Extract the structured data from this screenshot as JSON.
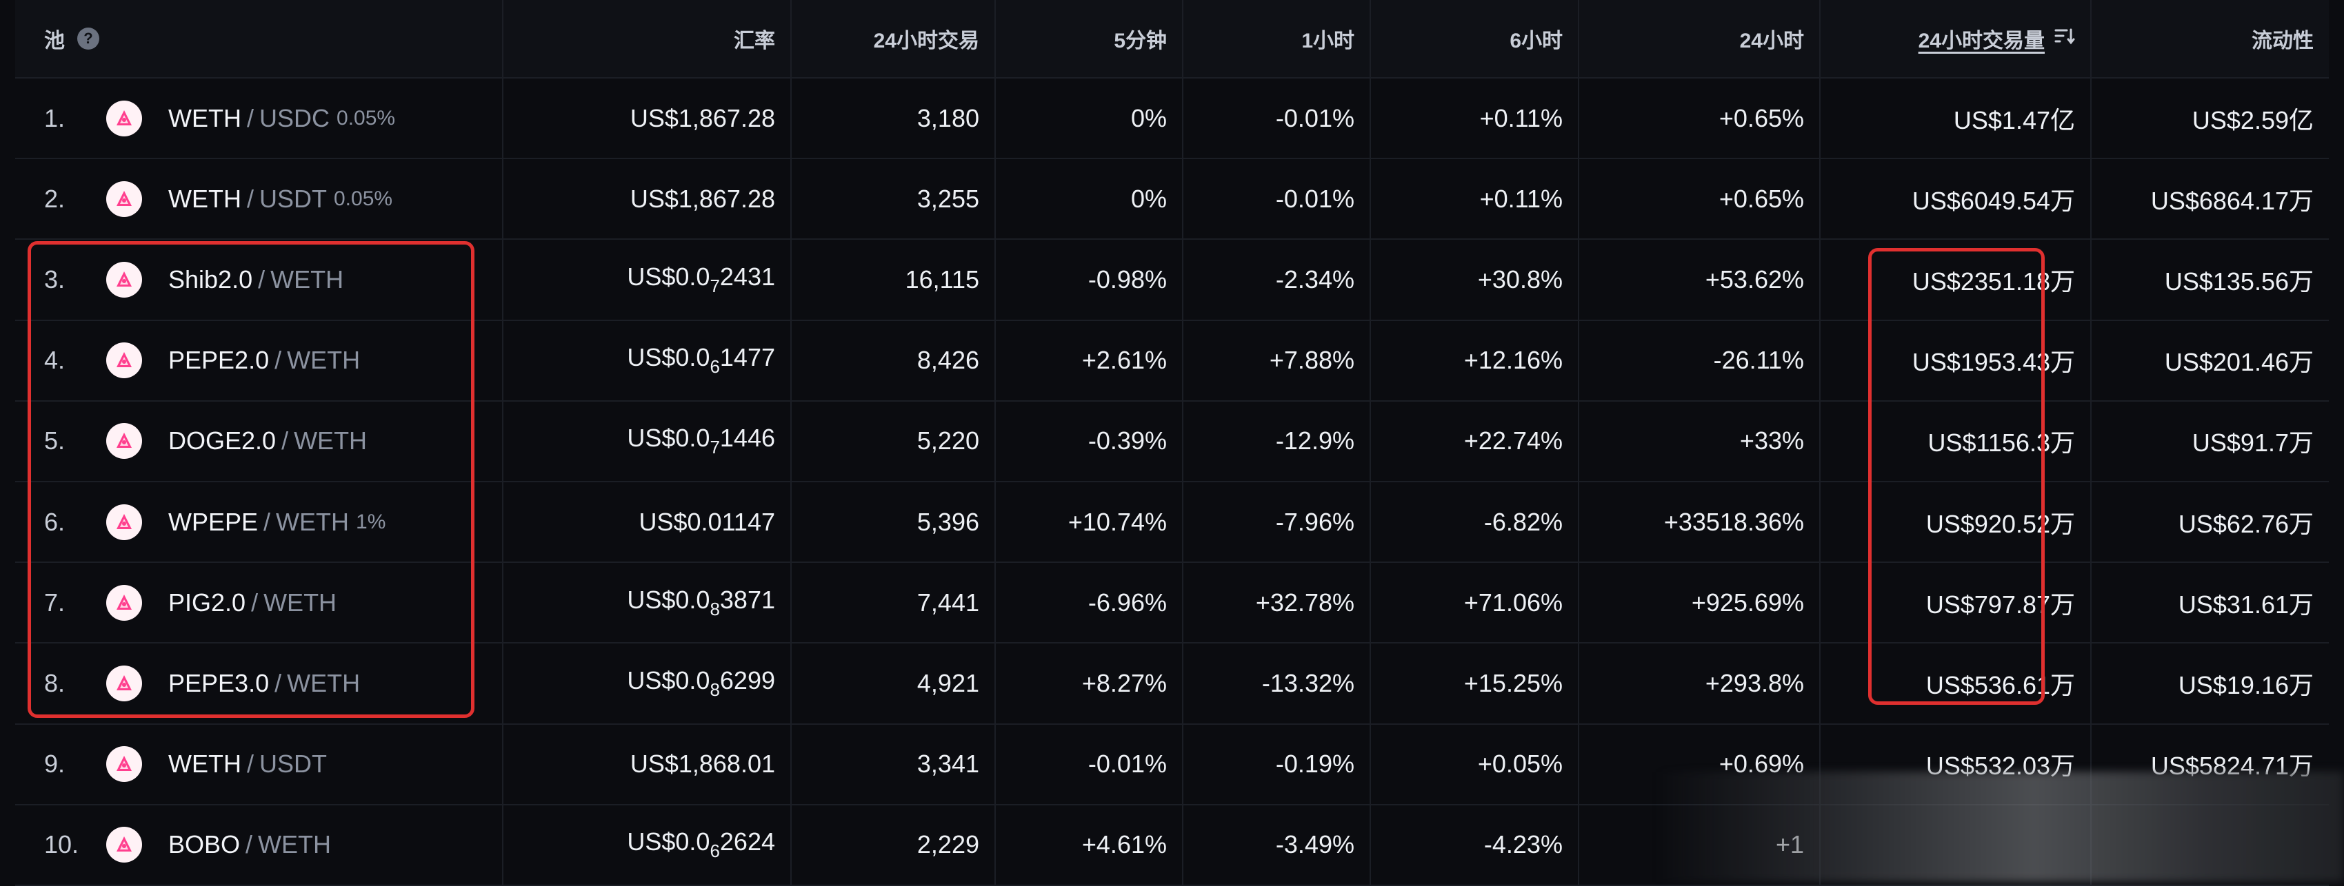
{
  "header": {
    "pool": "池",
    "help_glyph": "?",
    "rate": "汇率",
    "tx24h": "24小时交易",
    "m5": "5分钟",
    "h1": "1小时",
    "h6": "6小时",
    "h24": "24小时",
    "vol24h": "24小时交易量",
    "liquidity": "流动性"
  },
  "rows": [
    {
      "idx": "1.",
      "t0": "WETH",
      "t1": "USDC",
      "fee": "0.05%",
      "rate": "US$1,867.28",
      "tx": "3,180",
      "m5": "0%",
      "h1": "-0.01%",
      "h6": "+0.11%",
      "h24": "+0.65%",
      "vol": "US$1.47亿",
      "liq": "US$2.59亿"
    },
    {
      "idx": "2.",
      "t0": "WETH",
      "t1": "USDT",
      "fee": "0.05%",
      "rate": "US$1,867.28",
      "tx": "3,255",
      "m5": "0%",
      "h1": "-0.01%",
      "h6": "+0.11%",
      "h24": "+0.65%",
      "vol": "US$6049.54万",
      "liq": "US$6864.17万"
    },
    {
      "idx": "3.",
      "t0": "Shib2.0",
      "t1": "WETH",
      "fee": "",
      "rate_a": "US$0.0",
      "rate_sub": "7",
      "rate_b": "2431",
      "tx": "16,115",
      "m5": "-0.98%",
      "h1": "-2.34%",
      "h6": "+30.8%",
      "h24": "+53.62%",
      "vol": "US$2351.18万",
      "liq": "US$135.56万"
    },
    {
      "idx": "4.",
      "t0": "PEPE2.0",
      "t1": "WETH",
      "fee": "",
      "rate_a": "US$0.0",
      "rate_sub": "6",
      "rate_b": "1477",
      "tx": "8,426",
      "m5": "+2.61%",
      "h1": "+7.88%",
      "h6": "+12.16%",
      "h24": "-26.11%",
      "vol": "US$1953.43万",
      "liq": "US$201.46万"
    },
    {
      "idx": "5.",
      "t0": "DOGE2.0",
      "t1": "WETH",
      "fee": "",
      "rate_a": "US$0.0",
      "rate_sub": "7",
      "rate_b": "1446",
      "tx": "5,220",
      "m5": "-0.39%",
      "h1": "-12.9%",
      "h6": "+22.74%",
      "h24": "+33%",
      "vol": "US$1156.3万",
      "liq": "US$91.7万"
    },
    {
      "idx": "6.",
      "t0": "WPEPE",
      "t1": "WETH",
      "fee": "1%",
      "rate": "US$0.01147",
      "tx": "5,396",
      "m5": "+10.74%",
      "h1": "-7.96%",
      "h6": "-6.82%",
      "h24": "+33518.36%",
      "vol": "US$920.52万",
      "liq": "US$62.76万"
    },
    {
      "idx": "7.",
      "t0": "PIG2.0",
      "t1": "WETH",
      "fee": "",
      "rate_a": "US$0.0",
      "rate_sub": "8",
      "rate_b": "3871",
      "tx": "7,441",
      "m5": "-6.96%",
      "h1": "+32.78%",
      "h6": "+71.06%",
      "h24": "+925.69%",
      "vol": "US$797.87万",
      "liq": "US$31.61万"
    },
    {
      "idx": "8.",
      "t0": "PEPE3.0",
      "t1": "WETH",
      "fee": "",
      "rate_a": "US$0.0",
      "rate_sub": "8",
      "rate_b": "6299",
      "tx": "4,921",
      "m5": "+8.27%",
      "h1": "-13.32%",
      "h6": "+15.25%",
      "h24": "+293.8%",
      "vol": "US$536.61万",
      "liq": "US$19.16万"
    },
    {
      "idx": "9.",
      "t0": "WETH",
      "t1": "USDT",
      "fee": "",
      "rate": "US$1,868.01",
      "tx": "3,341",
      "m5": "-0.01%",
      "h1": "-0.19%",
      "h6": "+0.05%",
      "h24": "+0.69%",
      "vol": "US$532.03万",
      "liq": "US$5824.71万"
    },
    {
      "idx": "10.",
      "t0": "BOBO",
      "t1": "WETH",
      "fee": "",
      "rate_a": "US$0.0",
      "rate_sub": "6",
      "rate_b": "2624",
      "tx": "2,229",
      "m5": "+4.61%",
      "h1": "-3.49%",
      "h6": "-4.23%",
      "h24": "+1",
      "vol": "",
      "liq": ""
    }
  ],
  "colors": {
    "positive": "#3fcf6b",
    "negative": "#f0444a",
    "neutral": "#6f7682",
    "highlight": "#e0302f"
  },
  "icons": {
    "token_logo": "uniswap-unicorn-icon",
    "help": "question-circle-icon",
    "sort": "sort-descending-icon"
  }
}
